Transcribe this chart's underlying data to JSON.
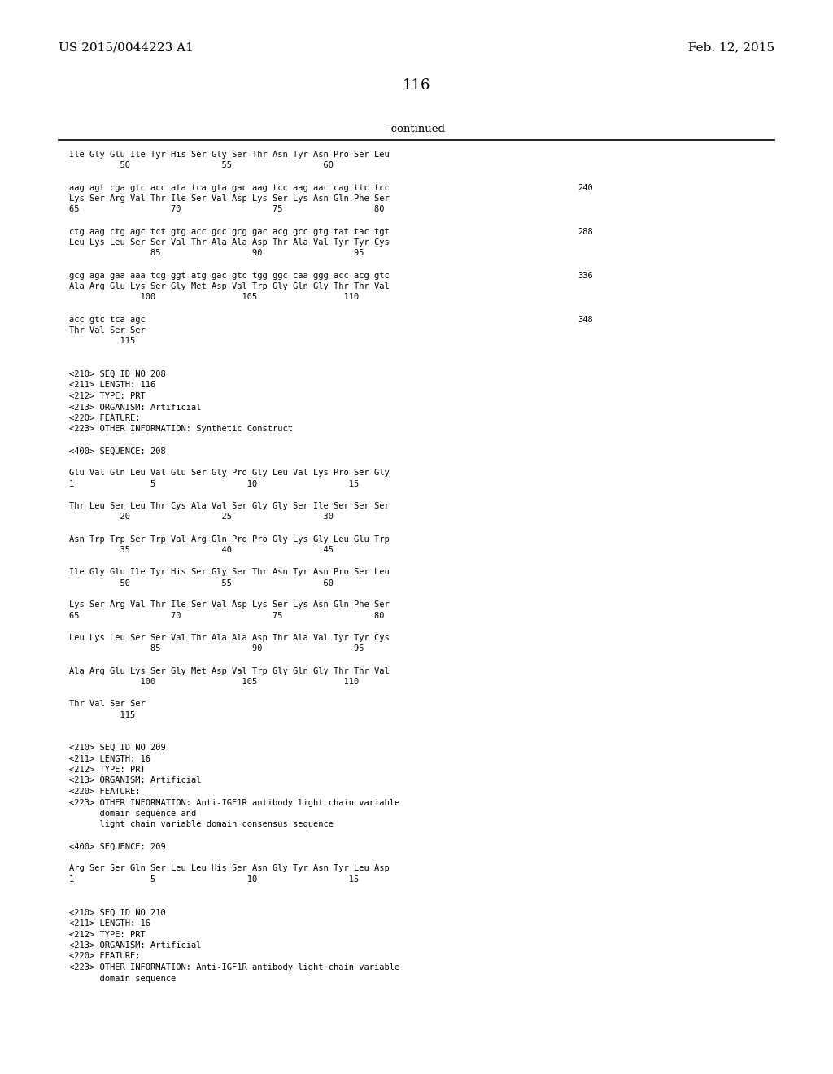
{
  "header_left": "US 2015/0044223 A1",
  "header_right": "Feb. 12, 2015",
  "page_number": "116",
  "continued_label": "-continued",
  "background_color": "#ffffff",
  "text_color": "#000000",
  "mono_font_size": 7.5,
  "header_font_size": 11,
  "page_num_font_size": 13,
  "content_lines": [
    {
      "text": "Ile Gly Glu Ile Tyr His Ser Gly Ser Thr Asn Tyr Asn Pro Ser Leu",
      "x": 85,
      "num": null
    },
    {
      "text": "          50                  55                  60",
      "x": 85,
      "num": null
    },
    {
      "text": "",
      "x": 85,
      "num": null
    },
    {
      "text": "aag agt cga gtc acc ata tca gta gac aag tcc aag aac cag ttc tcc",
      "x": 85,
      "num": "240"
    },
    {
      "text": "Lys Ser Arg Val Thr Ile Ser Val Asp Lys Ser Lys Asn Gln Phe Ser",
      "x": 85,
      "num": null
    },
    {
      "text": "65                  70                  75                  80",
      "x": 85,
      "num": null
    },
    {
      "text": "",
      "x": 85,
      "num": null
    },
    {
      "text": "ctg aag ctg agc tct gtg acc gcc gcg gac acg gcc gtg tat tac tgt",
      "x": 85,
      "num": "288"
    },
    {
      "text": "Leu Lys Leu Ser Ser Val Thr Ala Ala Asp Thr Ala Val Tyr Tyr Cys",
      "x": 85,
      "num": null
    },
    {
      "text": "                85                  90                  95",
      "x": 85,
      "num": null
    },
    {
      "text": "",
      "x": 85,
      "num": null
    },
    {
      "text": "gcg aga gaa aaa tcg ggt atg gac gtc tgg ggc caa ggg acc acg gtc",
      "x": 85,
      "num": "336"
    },
    {
      "text": "Ala Arg Glu Lys Ser Gly Met Asp Val Trp Gly Gln Gly Thr Thr Val",
      "x": 85,
      "num": null
    },
    {
      "text": "              100                 105                 110",
      "x": 85,
      "num": null
    },
    {
      "text": "",
      "x": 85,
      "num": null
    },
    {
      "text": "acc gtc tca agc",
      "x": 85,
      "num": "348"
    },
    {
      "text": "Thr Val Ser Ser",
      "x": 85,
      "num": null
    },
    {
      "text": "          115",
      "x": 85,
      "num": null
    },
    {
      "text": "",
      "x": 85,
      "num": null
    },
    {
      "text": "",
      "x": 85,
      "num": null
    },
    {
      "text": "<210> SEQ ID NO 208",
      "x": 85,
      "num": null
    },
    {
      "text": "<211> LENGTH: 116",
      "x": 85,
      "num": null
    },
    {
      "text": "<212> TYPE: PRT",
      "x": 85,
      "num": null
    },
    {
      "text": "<213> ORGANISM: Artificial",
      "x": 85,
      "num": null
    },
    {
      "text": "<220> FEATURE:",
      "x": 85,
      "num": null
    },
    {
      "text": "<223> OTHER INFORMATION: Synthetic Construct",
      "x": 85,
      "num": null
    },
    {
      "text": "",
      "x": 85,
      "num": null
    },
    {
      "text": "<400> SEQUENCE: 208",
      "x": 85,
      "num": null
    },
    {
      "text": "",
      "x": 85,
      "num": null
    },
    {
      "text": "Glu Val Gln Leu Val Glu Ser Gly Pro Gly Leu Val Lys Pro Ser Gly",
      "x": 85,
      "num": null
    },
    {
      "text": "1               5                  10                  15",
      "x": 85,
      "num": null
    },
    {
      "text": "",
      "x": 85,
      "num": null
    },
    {
      "text": "Thr Leu Ser Leu Thr Cys Ala Val Ser Gly Gly Ser Ile Ser Ser Ser",
      "x": 85,
      "num": null
    },
    {
      "text": "          20                  25                  30",
      "x": 85,
      "num": null
    },
    {
      "text": "",
      "x": 85,
      "num": null
    },
    {
      "text": "Asn Trp Trp Ser Trp Val Arg Gln Pro Pro Gly Lys Gly Leu Glu Trp",
      "x": 85,
      "num": null
    },
    {
      "text": "          35                  40                  45",
      "x": 85,
      "num": null
    },
    {
      "text": "",
      "x": 85,
      "num": null
    },
    {
      "text": "Ile Gly Glu Ile Tyr His Ser Gly Ser Thr Asn Tyr Asn Pro Ser Leu",
      "x": 85,
      "num": null
    },
    {
      "text": "          50                  55                  60",
      "x": 85,
      "num": null
    },
    {
      "text": "",
      "x": 85,
      "num": null
    },
    {
      "text": "Lys Ser Arg Val Thr Ile Ser Val Asp Lys Ser Lys Asn Gln Phe Ser",
      "x": 85,
      "num": null
    },
    {
      "text": "65                  70                  75                  80",
      "x": 85,
      "num": null
    },
    {
      "text": "",
      "x": 85,
      "num": null
    },
    {
      "text": "Leu Lys Leu Ser Ser Val Thr Ala Ala Asp Thr Ala Val Tyr Tyr Cys",
      "x": 85,
      "num": null
    },
    {
      "text": "                85                  90                  95",
      "x": 85,
      "num": null
    },
    {
      "text": "",
      "x": 85,
      "num": null
    },
    {
      "text": "Ala Arg Glu Lys Ser Gly Met Asp Val Trp Gly Gln Gly Thr Thr Val",
      "x": 85,
      "num": null
    },
    {
      "text": "              100                 105                 110",
      "x": 85,
      "num": null
    },
    {
      "text": "",
      "x": 85,
      "num": null
    },
    {
      "text": "Thr Val Ser Ser",
      "x": 85,
      "num": null
    },
    {
      "text": "          115",
      "x": 85,
      "num": null
    },
    {
      "text": "",
      "x": 85,
      "num": null
    },
    {
      "text": "",
      "x": 85,
      "num": null
    },
    {
      "text": "<210> SEQ ID NO 209",
      "x": 85,
      "num": null
    },
    {
      "text": "<211> LENGTH: 16",
      "x": 85,
      "num": null
    },
    {
      "text": "<212> TYPE: PRT",
      "x": 85,
      "num": null
    },
    {
      "text": "<213> ORGANISM: Artificial",
      "x": 85,
      "num": null
    },
    {
      "text": "<220> FEATURE:",
      "x": 85,
      "num": null
    },
    {
      "text": "<223> OTHER INFORMATION: Anti-IGF1R antibody light chain variable",
      "x": 85,
      "num": null
    },
    {
      "text": "      domain sequence and",
      "x": 85,
      "num": null
    },
    {
      "text": "      light chain variable domain consensus sequence",
      "x": 85,
      "num": null
    },
    {
      "text": "",
      "x": 85,
      "num": null
    },
    {
      "text": "<400> SEQUENCE: 209",
      "x": 85,
      "num": null
    },
    {
      "text": "",
      "x": 85,
      "num": null
    },
    {
      "text": "Arg Ser Ser Gln Ser Leu Leu His Ser Asn Gly Tyr Asn Tyr Leu Asp",
      "x": 85,
      "num": null
    },
    {
      "text": "1               5                  10                  15",
      "x": 85,
      "num": null
    },
    {
      "text": "",
      "x": 85,
      "num": null
    },
    {
      "text": "",
      "x": 85,
      "num": null
    },
    {
      "text": "<210> SEQ ID NO 210",
      "x": 85,
      "num": null
    },
    {
      "text": "<211> LENGTH: 16",
      "x": 85,
      "num": null
    },
    {
      "text": "<212> TYPE: PRT",
      "x": 85,
      "num": null
    },
    {
      "text": "<213> ORGANISM: Artificial",
      "x": 85,
      "num": null
    },
    {
      "text": "<220> FEATURE:",
      "x": 85,
      "num": null
    },
    {
      "text": "<223> OTHER INFORMATION: Anti-IGF1R antibody light chain variable",
      "x": 85,
      "num": null
    },
    {
      "text": "      domain sequence",
      "x": 85,
      "num": null
    }
  ]
}
